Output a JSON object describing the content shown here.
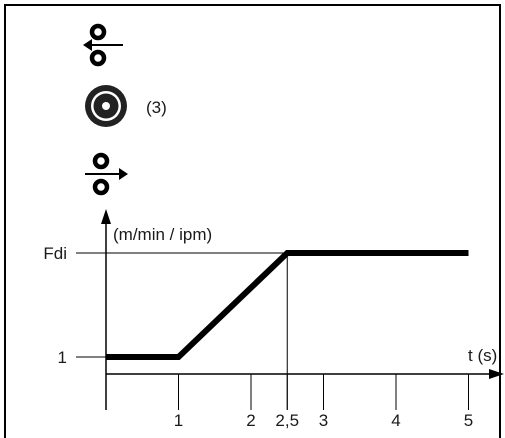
{
  "icons": {
    "top": "wire-retract-icon",
    "middle": "wire-spool-icon",
    "bottom": "wire-feed-icon"
  },
  "spool_note": "(3)",
  "chart_data": {
    "type": "line",
    "y_axis_unit": "(m/min / ipm)",
    "x_axis_label": "t (s)",
    "y_levels": [
      {
        "label": "Fdi",
        "value": 2
      },
      {
        "label": "1",
        "value": 1
      }
    ],
    "x_ticks": [
      {
        "label": "1",
        "value": 1
      },
      {
        "label": "2",
        "value": 2
      },
      {
        "label": "2,5",
        "value": 2.5
      },
      {
        "label": "3",
        "value": 3
      },
      {
        "label": "4",
        "value": 4
      },
      {
        "label": "5",
        "value": 5
      }
    ],
    "series": [
      {
        "points": [
          [
            0,
            1
          ],
          [
            1,
            1
          ],
          [
            2.5,
            2
          ],
          [
            5,
            2
          ]
        ]
      }
    ],
    "xlim": [
      0,
      5.3
    ],
    "ylim": [
      0,
      2.3
    ]
  }
}
